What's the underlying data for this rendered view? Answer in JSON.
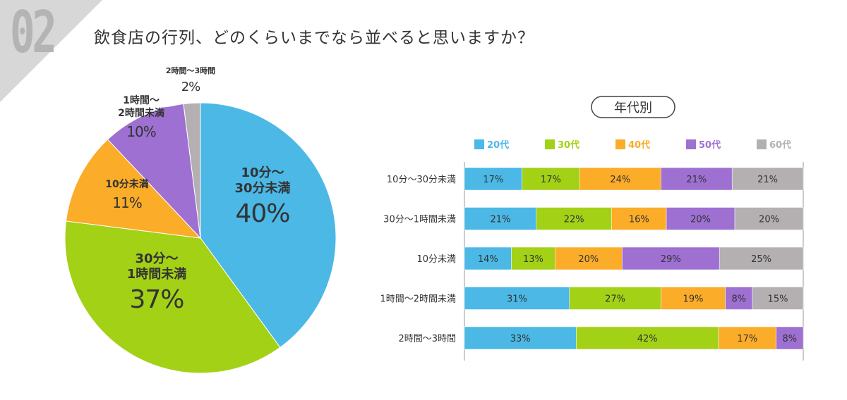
{
  "question": {
    "number": "02",
    "title": "飲食店の行列、どのくらいまでなら並べると思いますか？"
  },
  "colors": {
    "c20": "#4bb8e6",
    "c30": "#a3d116",
    "c40": "#fbac28",
    "c50": "#9e70d2",
    "c60": "#b4b0b2",
    "text": "#333333",
    "axis": "#999999"
  },
  "chart_data": [
    {
      "type": "pie",
      "slices": [
        {
          "label_lines": [
            "10分～",
            "30分未満"
          ],
          "value": 40,
          "value_label": "40%",
          "color": "#4bb8e6"
        },
        {
          "label_lines": [
            "30分～",
            "1時間未満"
          ],
          "value": 37,
          "value_label": "37%",
          "color": "#a3d116"
        },
        {
          "label_lines": [
            "10分未満"
          ],
          "value": 11,
          "value_label": "11%",
          "color": "#fbac28"
        },
        {
          "label_lines": [
            "1時間～",
            "2時間未満"
          ],
          "value": 10,
          "value_label": "10%",
          "color": "#9e70d2"
        },
        {
          "label_lines": [
            "2時間～3時間"
          ],
          "value": 2,
          "value_label": "2%",
          "color": "#b4b0b2"
        }
      ]
    },
    {
      "type": "bar",
      "orientation": "horizontal",
      "stacked": true,
      "title": "年代別",
      "xlim": [
        0,
        100
      ],
      "categories": [
        "10分～30分未満",
        "30分～1時間未満",
        "10分未満",
        "1時間～2時間未満",
        "2時間～3時間"
      ],
      "series": [
        {
          "name": "20代",
          "color": "#4bb8e6",
          "values": [
            17,
            21,
            14,
            31,
            33
          ]
        },
        {
          "name": "30代",
          "color": "#a3d116",
          "values": [
            17,
            22,
            13,
            27,
            42
          ]
        },
        {
          "name": "40代",
          "color": "#fbac28",
          "values": [
            24,
            16,
            20,
            19,
            17
          ]
        },
        {
          "name": "50代",
          "color": "#9e70d2",
          "values": [
            21,
            20,
            29,
            8,
            8
          ]
        },
        {
          "name": "60代",
          "color": "#b4b0b2",
          "values": [
            21,
            20,
            25,
            15,
            0
          ]
        }
      ]
    }
  ]
}
